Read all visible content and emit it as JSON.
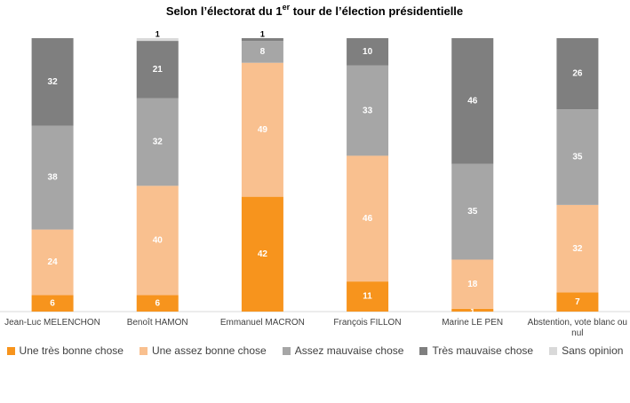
{
  "chart_data": {
    "type": "stacked-bar",
    "title": [
      "Selon l’électorat du 1",
      "er",
      " tour de l’élection présidentielle"
    ],
    "categories": [
      "Jean-Luc MELENCHON",
      "Benoît HAMON",
      "Emmanuel MACRON",
      "François FILLON",
      "Marine LE PEN",
      "Abstention, vote blanc ou nul"
    ],
    "ylim": [
      0,
      100
    ],
    "series": [
      {
        "name": "Une très bonne chose",
        "color": "#f7941d",
        "values": [
          6,
          6,
          42,
          11,
          1,
          7
        ]
      },
      {
        "name": "Une assez bonne chose",
        "color": "#f9c08f",
        "values": [
          24,
          40,
          49,
          46,
          18,
          32
        ]
      },
      {
        "name": "Assez mauvaise chose",
        "color": "#a6a6a6",
        "values": [
          38,
          32,
          8,
          33,
          35,
          35
        ]
      },
      {
        "name": "Très mauvaise chose",
        "color": "#7f7f7f",
        "values": [
          32,
          21,
          1,
          10,
          46,
          26
        ]
      },
      {
        "name": "Sans opinion",
        "color": "#d9d9d9",
        "values": [
          0,
          1,
          0,
          0,
          0,
          0
        ]
      }
    ]
  }
}
